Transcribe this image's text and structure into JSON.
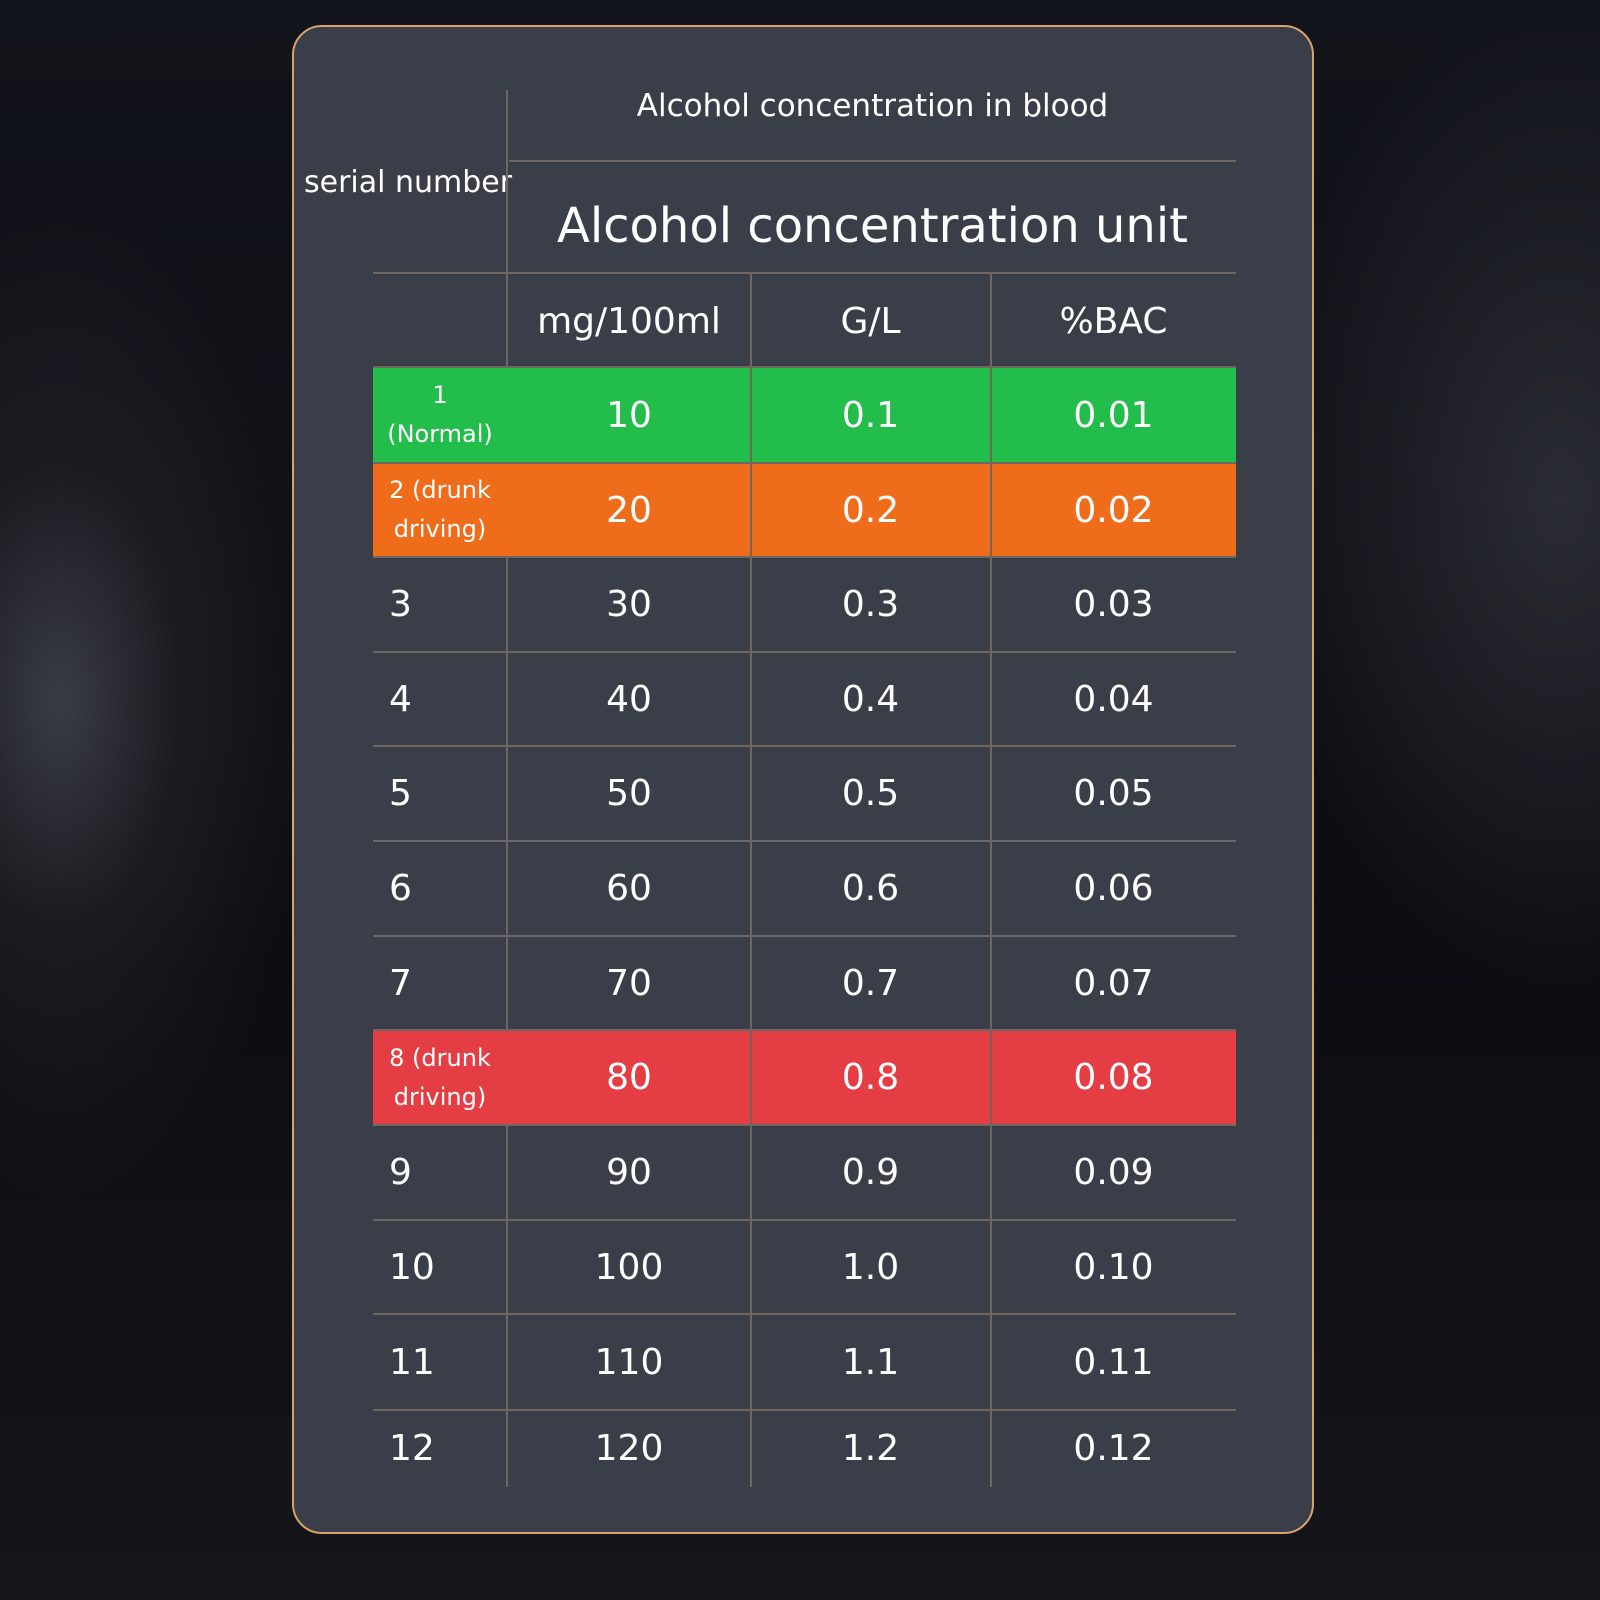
{
  "header": {
    "serial_label": "serial number",
    "group_title": "Alcohol concentration in blood",
    "unit_title": "Alcohol concentration unit",
    "columns": [
      "mg/100ml",
      "G/L",
      "%BAC"
    ]
  },
  "colors": {
    "normal": "#22bd4b",
    "warning": "#ee6c1a",
    "danger": "#e43e44",
    "card_bg": "#3a3e48",
    "border": "#d9a26a"
  },
  "rows": [
    {
      "serial": "1 (Normal)",
      "mg": "10",
      "gl": "0.1",
      "bac": "0.01",
      "status": "normal"
    },
    {
      "serial": "2 (drunk driving)",
      "mg": "20",
      "gl": "0.2",
      "bac": "0.02",
      "status": "warning"
    },
    {
      "serial": "3",
      "mg": "30",
      "gl": "0.3",
      "bac": "0.03"
    },
    {
      "serial": "4",
      "mg": "40",
      "gl": "0.4",
      "bac": "0.04"
    },
    {
      "serial": "5",
      "mg": "50",
      "gl": "0.5",
      "bac": "0.05"
    },
    {
      "serial": "6",
      "mg": "60",
      "gl": "0.6",
      "bac": "0.06"
    },
    {
      "serial": "7",
      "mg": "70",
      "gl": "0.7",
      "bac": "0.07"
    },
    {
      "serial": "8 (drunk driving)",
      "mg": "80",
      "gl": "0.8",
      "bac": "0.08",
      "status": "danger"
    },
    {
      "serial": "9",
      "mg": "90",
      "gl": "0.9",
      "bac": "0.09"
    },
    {
      "serial": "10",
      "mg": "100",
      "gl": "1.0",
      "bac": "0.10"
    },
    {
      "serial": "11",
      "mg": "110",
      "gl": "1.1",
      "bac": "0.11"
    },
    {
      "serial": "12",
      "mg": "120",
      "gl": "1.2",
      "bac": "0.12"
    }
  ]
}
